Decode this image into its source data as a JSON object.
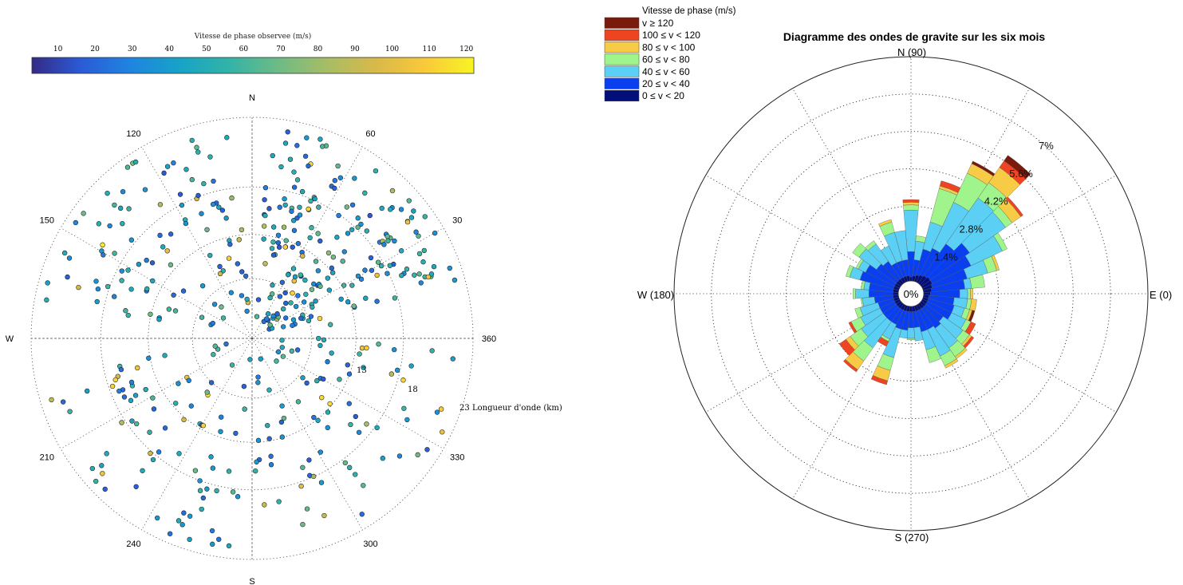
{
  "chart_data": [
    {
      "type": "scatter",
      "subtype": "polar",
      "colorbar": {
        "title": "Vitesse de phase observee (m/s)",
        "ticks": [
          "10",
          "20",
          "30",
          "40",
          "50",
          "60",
          "70",
          "80",
          "90",
          "100",
          "110",
          "120"
        ],
        "range": [
          3,
          122
        ],
        "colormap": [
          "#352a87",
          "#2a5bd6",
          "#1f84e0",
          "#16a3c8",
          "#32b3a8",
          "#6cbb86",
          "#a7bd65",
          "#d8b94a",
          "#f9c93a",
          "#f8f423"
        ]
      },
      "direction_labels": {
        "north": "N",
        "south": "S",
        "west": "W"
      },
      "angle_ticks": [
        {
          "deg": 0,
          "label": "360"
        },
        {
          "deg": 30,
          "label": "30"
        },
        {
          "deg": 60,
          "label": "60"
        },
        {
          "deg": 120,
          "label": "120"
        },
        {
          "deg": 150,
          "label": "150"
        },
        {
          "deg": 210,
          "label": "210"
        },
        {
          "deg": 240,
          "label": "240"
        },
        {
          "deg": 300,
          "label": "300"
        },
        {
          "deg": 330,
          "label": "330"
        }
      ],
      "radial_ticks": [
        "13",
        "18",
        "23"
      ],
      "radial_axis_label": "Longueur d'onde (km)",
      "seed_points": [
        {
          "angle_deg": 45,
          "r": 13.0,
          "v": 72
        },
        {
          "angle_deg": 30,
          "r": 12.0,
          "v": 58
        },
        {
          "angle_deg": 55,
          "r": 8.5,
          "v": 40
        },
        {
          "angle_deg": 70,
          "r": 11.0,
          "v": 110
        },
        {
          "angle_deg": 120,
          "r": 15.0,
          "v": 35
        },
        {
          "angle_deg": 150,
          "r": 13.0,
          "v": 45
        },
        {
          "angle_deg": 200,
          "r": 14.5,
          "v": 28
        },
        {
          "angle_deg": 230,
          "r": 12.0,
          "v": 95
        },
        {
          "angle_deg": 280,
          "r": 10.0,
          "v": 50
        },
        {
          "angle_deg": 320,
          "r": 11.5,
          "v": 115
        },
        {
          "angle_deg": 355,
          "r": 12.5,
          "v": 105
        },
        {
          "angle_deg": 10,
          "r": 9.0,
          "v": 60
        }
      ]
    },
    {
      "type": "windrose",
      "title": "Diagramme des ondes de gravite sur les six mois",
      "legend": {
        "title": "Vitesse de phase (m/s)",
        "placement": "top-left",
        "entries": [
          {
            "label": "v ≥ 120",
            "color": "#7a1a0c"
          },
          {
            "label": "100 ≤ v < 120",
            "color": "#ee4422"
          },
          {
            "label": "80 ≤ v < 100",
            "color": "#f7cb45"
          },
          {
            "label": "60 ≤ v < 80",
            "color": "#9ff58c"
          },
          {
            "label": "40 ≤ v < 60",
            "color": "#5bcff4"
          },
          {
            "label": "20 ≤ v < 40",
            "color": "#0a3ff0"
          },
          {
            "label": "0 ≤ v < 20",
            "color": "#020f7a"
          }
        ]
      },
      "direction_labels": {
        "north": "N (90)",
        "east": "E (0)",
        "south": "S (270)",
        "west": "W (180)"
      },
      "center_label": "0%",
      "radial_ticks": [
        {
          "value": 1.4,
          "label": "1.4%"
        },
        {
          "value": 2.8,
          "label": "2.8%"
        },
        {
          "value": 4.2,
          "label": "4.2%"
        },
        {
          "value": 5.6,
          "label": "5.6%"
        },
        {
          "value": 7.0,
          "label": "7%"
        }
      ],
      "rmax": 8.4,
      "bin_width_deg": 10,
      "bins_percent_order": [
        "0-20",
        "20-40",
        "40-60",
        "60-80",
        "80-100",
        "100-120",
        ">=120"
      ],
      "bins": [
        {
          "dir": 0,
          "v": [
            0.25,
            1.1,
            0.3,
            0.1,
            0.1,
            0.0,
            0.0
          ]
        },
        {
          "dir": 10,
          "v": [
            0.3,
            1.25,
            0.25,
            0.5,
            0.0,
            0.0,
            0.0
          ]
        },
        {
          "dir": 20,
          "v": [
            0.35,
            1.35,
            0.8,
            0.35,
            0.1,
            0.0,
            0.0
          ]
        },
        {
          "dir": 30,
          "v": [
            0.4,
            1.6,
            1.3,
            0.2,
            0.0,
            0.0,
            0.0
          ]
        },
        {
          "dir": 40,
          "v": [
            0.4,
            1.8,
            1.65,
            0.3,
            0.4,
            0.1,
            0.0
          ]
        },
        {
          "dir": 50,
          "v": [
            0.35,
            1.45,
            2.1,
            0.7,
            0.7,
            0.3,
            0.25
          ]
        },
        {
          "dir": 60,
          "v": [
            0.3,
            1.1,
            1.9,
            1.2,
            0.4,
            0.0,
            0.1
          ]
        },
        {
          "dir": 70,
          "v": [
            0.25,
            1.0,
            1.05,
            1.3,
            0.1,
            0.2,
            0.0
          ]
        },
        {
          "dir": 80,
          "v": [
            0.2,
            0.6,
            0.7,
            0.2,
            0.0,
            0.0,
            0.0
          ]
        },
        {
          "dir": 90,
          "v": [
            0.15,
            0.95,
            1.55,
            0.2,
            0.1,
            0.1,
            0.0
          ]
        },
        {
          "dir": 100,
          "v": [
            0.2,
            0.6,
            1.1,
            0.0,
            0.0,
            0.0,
            0.0
          ]
        },
        {
          "dir": 110,
          "v": [
            0.2,
            0.6,
            1.1,
            0.4,
            0.1,
            0.0,
            0.0
          ]
        },
        {
          "dir": 120,
          "v": [
            0.2,
            0.6,
            0.7,
            0.0,
            0.0,
            0.0,
            0.0
          ]
        },
        {
          "dir": 130,
          "v": [
            0.2,
            0.8,
            0.8,
            0.15,
            0.0,
            0.0,
            0.0
          ]
        },
        {
          "dir": 140,
          "v": [
            0.2,
            0.9,
            0.8,
            0.3,
            0.0,
            0.0,
            0.0
          ]
        },
        {
          "dir": 150,
          "v": [
            0.2,
            1.2,
            0.3,
            0.1,
            0.0,
            0.0,
            0.0
          ]
        },
        {
          "dir": 160,
          "v": [
            0.2,
            1.3,
            0.4,
            0.15,
            0.0,
            0.0,
            0.0
          ]
        },
        {
          "dir": 170,
          "v": [
            0.2,
            0.9,
            0.2,
            0.1,
            0.0,
            0.0,
            0.0
          ]
        },
        {
          "dir": 180,
          "v": [
            0.2,
            0.9,
            0.5,
            0.1,
            0.0,
            0.0,
            0.0
          ]
        },
        {
          "dir": 190,
          "v": [
            0.2,
            0.7,
            0.45,
            0.05,
            0.0,
            0.0,
            0.0
          ]
        },
        {
          "dir": 200,
          "v": [
            0.2,
            0.6,
            0.7,
            0.2,
            0.0,
            0.0,
            0.0
          ]
        },
        {
          "dir": 210,
          "v": [
            0.2,
            0.6,
            0.8,
            0.4,
            0.0,
            0.1,
            0.0
          ]
        },
        {
          "dir": 220,
          "v": [
            0.2,
            0.6,
            1.0,
            0.5,
            0.2,
            0.3,
            0.0
          ]
        },
        {
          "dir": 230,
          "v": [
            0.2,
            0.6,
            1.2,
            0.6,
            0.4,
            0.1,
            0.0
          ]
        },
        {
          "dir": 240,
          "v": [
            0.2,
            0.6,
            0.6,
            0.1,
            0.0,
            0.2,
            0.0
          ]
        },
        {
          "dir": 250,
          "v": [
            0.2,
            0.7,
            1.1,
            0.5,
            0.4,
            0.15,
            0.0
          ]
        },
        {
          "dir": 260,
          "v": [
            0.2,
            0.7,
            0.3,
            0.0,
            0.0,
            0.0,
            0.0
          ]
        },
        {
          "dir": 270,
          "v": [
            0.2,
            0.6,
            0.4,
            0.05,
            0.0,
            0.0,
            0.0
          ]
        },
        {
          "dir": 280,
          "v": [
            0.2,
            0.6,
            0.5,
            0.0,
            0.0,
            0.0,
            0.0
          ]
        },
        {
          "dir": 290,
          "v": [
            0.2,
            0.8,
            0.7,
            0.5,
            0.0,
            0.0,
            0.0
          ]
        },
        {
          "dir": 300,
          "v": [
            0.2,
            0.8,
            1.1,
            0.4,
            0.1,
            0.0,
            0.0
          ]
        },
        {
          "dir": 310,
          "v": [
            0.2,
            0.9,
            0.9,
            0.4,
            0.1,
            0.0,
            0.0
          ]
        },
        {
          "dir": 320,
          "v": [
            0.2,
            0.8,
            0.9,
            0.3,
            0.1,
            0.1,
            0.0
          ]
        },
        {
          "dir": 330,
          "v": [
            0.2,
            1.0,
            0.6,
            0.2,
            0.0,
            0.2,
            0.0
          ]
        },
        {
          "dir": 340,
          "v": [
            0.2,
            1.0,
            0.4,
            0.2,
            0.1,
            0.0,
            0.1
          ]
        },
        {
          "dir": 350,
          "v": [
            0.2,
            0.95,
            0.5,
            0.15,
            0.2,
            0.0,
            0.0
          ]
        }
      ]
    }
  ]
}
